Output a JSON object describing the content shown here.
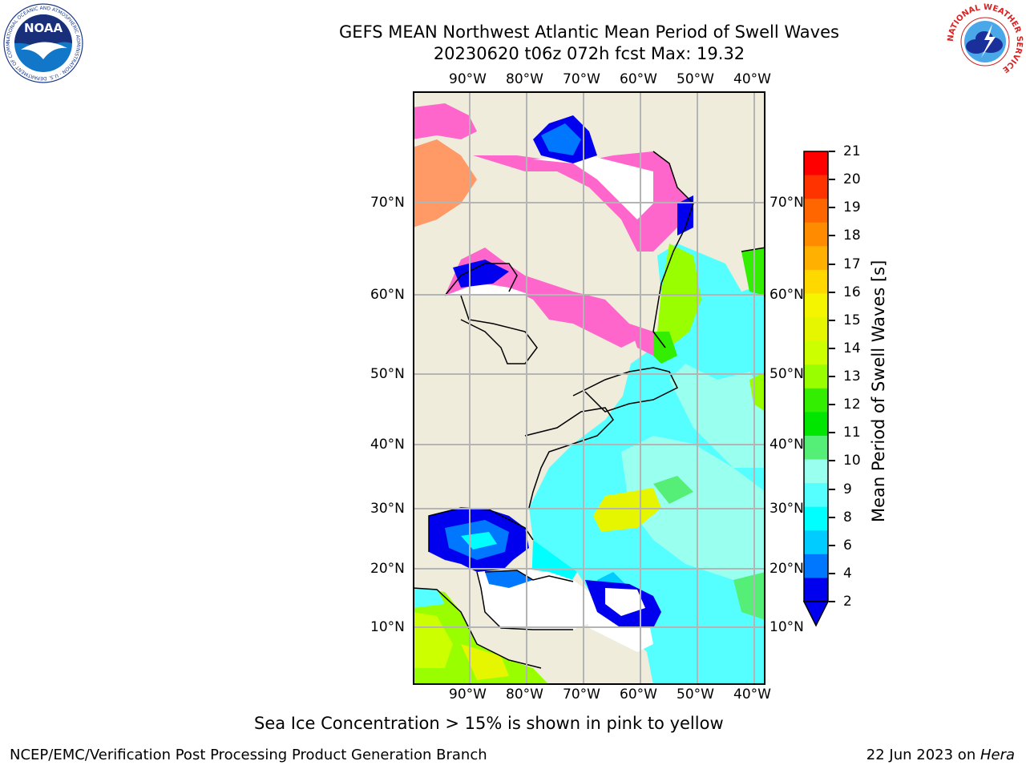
{
  "header": {
    "title_line1": "GEFS MEAN Northwest Atlantic Mean Period of Swell Waves",
    "title_line2": "20230620 t06z 072h fcst   Max: 19.32"
  },
  "logos": {
    "left_text": "NOAA",
    "left_ring_text": "NATIONAL OCEANIC AND ATMOSPHERIC ADMINISTRATION · U.S. DEPARTMENT OF COMMERCE",
    "right_ring_text": "NATIONAL WEATHER SERVICE"
  },
  "map": {
    "lon_labels": [
      "90°W",
      "80°W",
      "70°W",
      "60°W",
      "50°W",
      "40°W"
    ],
    "lat_labels": [
      "70°N",
      "60°N",
      "50°N",
      "40°N",
      "30°N",
      "20°N",
      "10°N"
    ],
    "colors": {
      "land": "#efecdc",
      "ice_high": "#ff66cc",
      "ice_low": "#ff9966",
      "grid": "#b4b4b4"
    }
  },
  "colorbar": {
    "label": "Mean Period of Swell Waves [s]",
    "ticks": [
      "21",
      "20",
      "19",
      "18",
      "17",
      "16",
      "15",
      "14",
      "13",
      "12",
      "11",
      "10",
      "9",
      "8",
      "6",
      "4",
      "2"
    ],
    "colors": [
      "#ff0000",
      "#ff3300",
      "#ff6600",
      "#ff8c00",
      "#ffb000",
      "#ffd800",
      "#f5f500",
      "#e6f500",
      "#ccff00",
      "#99ff00",
      "#33ee00",
      "#00e600",
      "#55ee77",
      "#99ffee",
      "#55ffff",
      "#00ffff",
      "#00ccff",
      "#0077ff",
      "#0000ee"
    ]
  },
  "note": "Sea Ice Concentration > 15% is shown in pink to yellow",
  "footer": {
    "left": "NCEP/EMC/Verification Post Processing Product Generation Branch",
    "right_date": "22 Jun 2023 on ",
    "right_host": "Hera"
  }
}
